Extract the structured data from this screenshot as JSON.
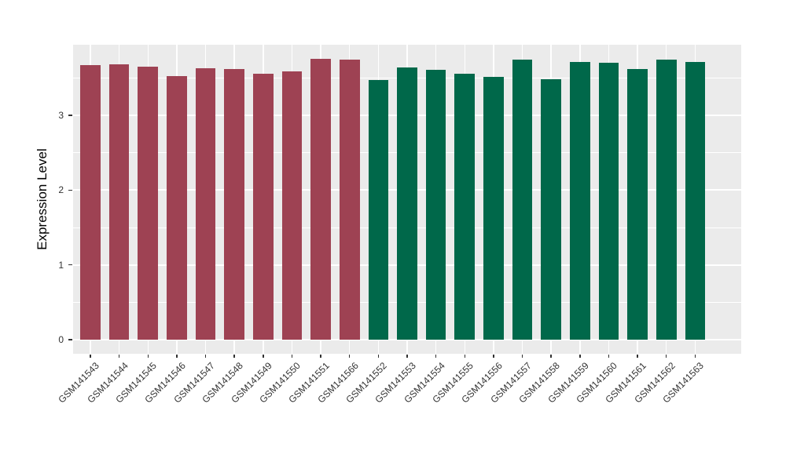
{
  "chart_data": {
    "type": "bar",
    "title": "",
    "xlabel": "",
    "ylabel": "Expression Level",
    "ylim": [
      0,
      3.95
    ],
    "yticks_major": [
      0,
      1,
      2,
      3
    ],
    "yticks_minor": [
      0.5,
      1.5,
      2.5,
      3.5
    ],
    "grid": "on",
    "legend": "none",
    "panel_background": "#EBEBEB",
    "gridline_color": "#FFFFFF",
    "group_colors": {
      "group1": "#9E4253",
      "group2": "#00684A"
    },
    "categories": [
      "GSM141543",
      "GSM141544",
      "GSM141545",
      "GSM141546",
      "GSM141547",
      "GSM141548",
      "GSM141549",
      "GSM141550",
      "GSM141551",
      "GSM141566",
      "GSM141552",
      "GSM141553",
      "GSM141554",
      "GSM141555",
      "GSM141556",
      "GSM141557",
      "GSM141558",
      "GSM141559",
      "GSM141560",
      "GSM141561",
      "GSM141562",
      "GSM141563"
    ],
    "values": [
      3.67,
      3.68,
      3.65,
      3.52,
      3.63,
      3.62,
      3.56,
      3.59,
      3.76,
      3.75,
      3.47,
      3.64,
      3.61,
      3.56,
      3.51,
      3.75,
      3.48,
      3.71,
      3.7,
      3.62,
      3.74,
      3.71
    ],
    "groups": [
      "group1",
      "group1",
      "group1",
      "group1",
      "group1",
      "group1",
      "group1",
      "group1",
      "group1",
      "group1",
      "group2",
      "group2",
      "group2",
      "group2",
      "group2",
      "group2",
      "group2",
      "group2",
      "group2",
      "group2",
      "group2",
      "group2"
    ]
  }
}
